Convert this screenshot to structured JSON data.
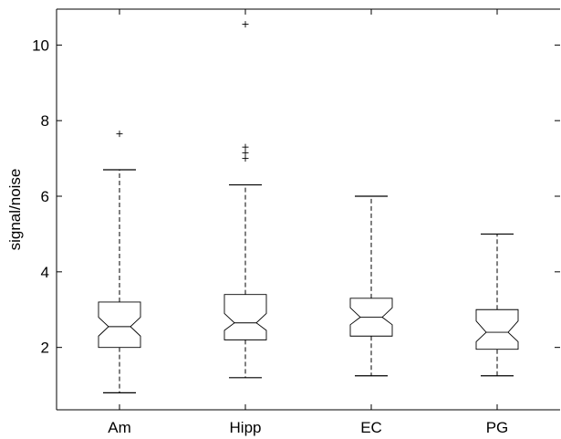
{
  "chart_data": {
    "type": "box",
    "notched": true,
    "ylabel": "signal/noise",
    "xlabel": "",
    "title": "",
    "ylim": [
      0.35,
      10.95
    ],
    "yticks": [
      2,
      4,
      6,
      8,
      10
    ],
    "categories": [
      "Am",
      "Hipp",
      "EC",
      "PG"
    ],
    "boxes": [
      {
        "category": "Am",
        "whisker_low": 0.8,
        "q1": 2.0,
        "median": 2.55,
        "q3": 3.2,
        "whisker_high": 6.7,
        "notch_low": 2.3,
        "notch_high": 2.8,
        "outliers": [
          7.65
        ]
      },
      {
        "category": "Hipp",
        "whisker_low": 1.2,
        "q1": 2.2,
        "median": 2.65,
        "q3": 3.4,
        "whisker_high": 6.3,
        "notch_low": 2.45,
        "notch_high": 2.9,
        "outliers": [
          7.0,
          7.15,
          7.3,
          10.55
        ]
      },
      {
        "category": "EC",
        "whisker_low": 1.25,
        "q1": 2.3,
        "median": 2.8,
        "q3": 3.3,
        "whisker_high": 6.0,
        "notch_low": 2.6,
        "notch_high": 3.05,
        "outliers": []
      },
      {
        "category": "PG",
        "whisker_low": 1.25,
        "q1": 1.95,
        "median": 2.4,
        "q3": 3.0,
        "whisker_high": 5.0,
        "notch_low": 2.15,
        "notch_high": 2.7,
        "outliers": []
      }
    ],
    "grid": false,
    "legend": "none"
  }
}
